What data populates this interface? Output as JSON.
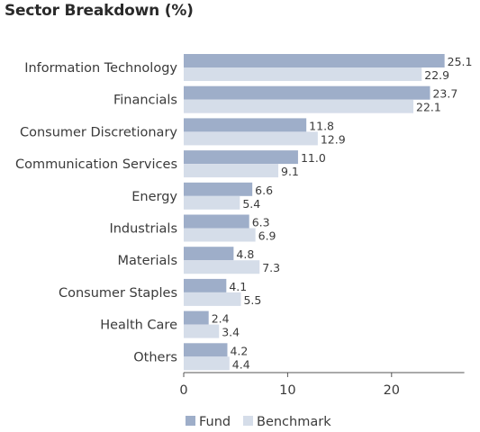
{
  "chart_data": {
    "type": "bar",
    "orientation": "horizontal",
    "title": "Sector Breakdown (%)",
    "categories": [
      "Information Technology",
      "Financials",
      "Consumer Discretionary",
      "Communication Services",
      "Energy",
      "Industrials",
      "Materials",
      "Consumer Staples",
      "Health Care",
      "Others"
    ],
    "series": [
      {
        "name": "Fund",
        "color": "#9eaec9",
        "values": [
          25.1,
          23.7,
          11.8,
          11.0,
          6.6,
          6.3,
          4.8,
          4.1,
          2.4,
          4.2
        ],
        "labels": [
          "25.1",
          "23.7",
          "11.8",
          "11.0",
          "6.6",
          "6.3",
          "4.8",
          "4.1",
          "2.4",
          "4.2"
        ]
      },
      {
        "name": "Benchmark",
        "color": "#d5dde9",
        "values": [
          22.9,
          22.1,
          12.9,
          9.1,
          5.4,
          6.9,
          7.3,
          5.5,
          3.4,
          4.4
        ],
        "labels": [
          "22.9",
          "22.1",
          "12.9",
          "9.1",
          "5.4",
          "6.9",
          "7.3",
          "5.5",
          "3.4",
          "4.4"
        ]
      }
    ],
    "xlim": [
      0,
      27
    ],
    "xticks": [
      {
        "value": 0,
        "label": "0"
      },
      {
        "value": 10,
        "label": "10"
      },
      {
        "value": 20,
        "label": "20"
      }
    ],
    "xlabel": "",
    "ylabel": "",
    "grid": false,
    "legend_position": "bottom-center"
  }
}
